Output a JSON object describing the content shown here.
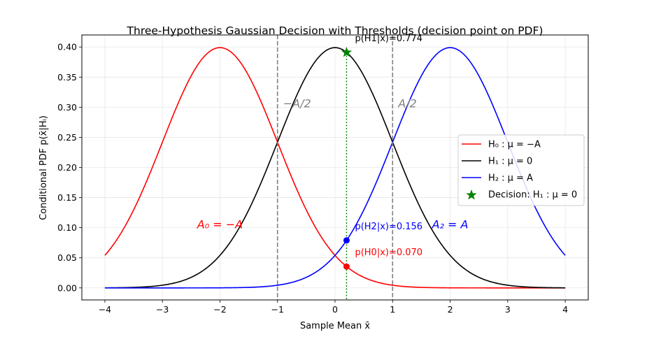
{
  "chart_data": {
    "type": "line",
    "title": "Three-Hypothesis Gaussian Decision with Thresholds (decision point on PDF)",
    "xlabel": "Sample Mean x̄",
    "ylabel": "Conditional PDF p(x̄|Hᵢ)",
    "xlim": [
      -4.4,
      4.4
    ],
    "ylim": [
      -0.02,
      0.42
    ],
    "xticks": [
      -4,
      -3,
      -2,
      -1,
      0,
      1,
      2,
      3,
      4
    ],
    "yticks": [
      0.0,
      0.05,
      0.1,
      0.15,
      0.2,
      0.25,
      0.3,
      0.35,
      0.4
    ],
    "xtick_labels": [
      "−4",
      "−3",
      "−2",
      "−1",
      "0",
      "1",
      "2",
      "3",
      "4"
    ],
    "ytick_labels": [
      "0.00",
      "0.05",
      "0.10",
      "0.15",
      "0.20",
      "0.25",
      "0.30",
      "0.35",
      "0.40"
    ],
    "grid": true,
    "x_range": [
      -4,
      4
    ],
    "sigma": 1,
    "series": [
      {
        "name": "H₀ : μ = −A",
        "mean": -2,
        "color": "#ff0000"
      },
      {
        "name": "H₁ : μ = 0",
        "mean": 0,
        "color": "#000000"
      },
      {
        "name": "H₂ : μ = A",
        "mean": 2,
        "color": "#0000ff"
      }
    ],
    "thresholds": [
      {
        "x": -1,
        "label": "−A/2"
      },
      {
        "x": 1,
        "label": "A/2"
      }
    ],
    "decision": {
      "x": 0.2,
      "label": "Decision: H₁ : μ = 0",
      "color": "#008000"
    },
    "point_annotations": [
      {
        "text": "p(H1|x)=0.774",
        "mean": 0,
        "color": "#000000"
      },
      {
        "text": "p(H2|x)=0.156",
        "mean": 2,
        "color": "#0000ff"
      },
      {
        "text": "p(H0|x)=0.070",
        "mean": -2,
        "color": "#ff0000"
      }
    ],
    "region_labels": [
      {
        "text": "A₀ = −A",
        "x": -2,
        "y": 0.105,
        "color": "#ff0000"
      },
      {
        "text": "A₂ = A",
        "x": 2,
        "y": 0.105,
        "color": "#0000ff"
      }
    ],
    "legend": {
      "placement": "center-right",
      "entries": [
        {
          "label": "H₀ : μ = −A",
          "color": "#ff0000",
          "kind": "line"
        },
        {
          "label": "H₁ : μ = 0",
          "color": "#000000",
          "kind": "line"
        },
        {
          "label": "H₂ : μ = A",
          "color": "#0000ff",
          "kind": "line"
        },
        {
          "label": "Decision: H₁ : μ = 0",
          "color": "#008000",
          "kind": "star"
        }
      ]
    }
  }
}
